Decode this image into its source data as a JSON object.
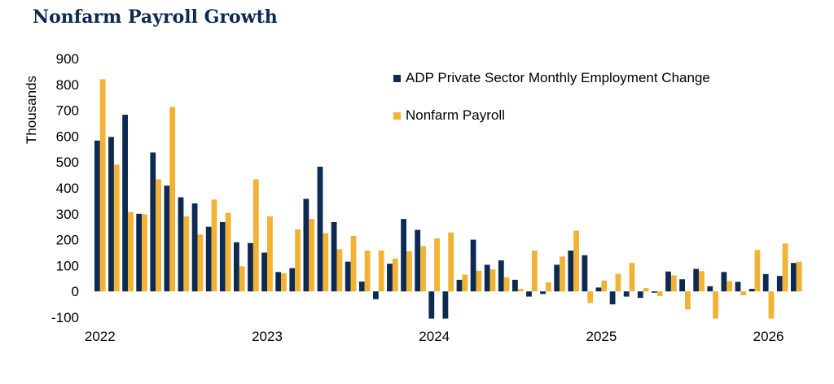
{
  "title": "Nonfarm Payroll Growth",
  "colors": {
    "adp": "#0d2a52",
    "nfp": "#f2b233",
    "title": "#0d2a52"
  },
  "chart_data": {
    "type": "bar",
    "title": "Nonfarm Payroll Growth",
    "ylabel": "Thousands",
    "xlabel": "",
    "ylim": [
      -100,
      900
    ],
    "yticks": [
      900,
      800,
      700,
      600,
      500,
      400,
      300,
      200,
      100,
      0,
      -100
    ],
    "xtick_labels": [
      "2022",
      "2023",
      "2024",
      "2025",
      "2026"
    ],
    "xtick_month_index": [
      0,
      12,
      24,
      36,
      48
    ],
    "legend_position": "top-right",
    "grid": false,
    "months": [
      "2022-01",
      "2022-02",
      "2022-03",
      "2022-04",
      "2022-05",
      "2022-06",
      "2022-07",
      "2022-08",
      "2022-09",
      "2022-10",
      "2022-11",
      "2022-12",
      "2023-01",
      "2023-02",
      "2023-03",
      "2023-04",
      "2023-05",
      "2023-06",
      "2023-07",
      "2023-08",
      "2023-09",
      "2023-10",
      "2023-11",
      "2023-12",
      "2024-01",
      "2024-02",
      "2024-03",
      "2024-04",
      "2024-05",
      "2024-06",
      "2024-07",
      "2024-08",
      "2024-09",
      "2024-10",
      "2024-11",
      "2024-12",
      "2025-01",
      "2025-02",
      "2025-03",
      "2025-04",
      "2025-05",
      "2025-06",
      "2025-07",
      "2025-08",
      "2025-09",
      "2025-10",
      "2025-11",
      "2025-12",
      "2026-01",
      "2026-02",
      "2026-03"
    ],
    "series": [
      {
        "name": "ADP Private Sector Monthly Employment Change",
        "values": [
          583,
          597,
          683,
          300,
          537,
          409,
          364,
          340,
          250,
          268,
          190,
          187,
          150,
          75,
          90,
          358,
          482,
          268,
          115,
          38,
          -30,
          107,
          280,
          238,
          -105,
          -105,
          45,
          200,
          103,
          120,
          45,
          -20,
          -10,
          103,
          158,
          140,
          15,
          -50,
          -20,
          -25,
          -5,
          77,
          47,
          87,
          20,
          75,
          37,
          10,
          67,
          60,
          110
        ]
      },
      {
        "name": "Nonfarm Payroll",
        "values": [
          820,
          490,
          307,
          298,
          433,
          713,
          290,
          220,
          355,
          303,
          97,
          433,
          290,
          70,
          240,
          280,
          225,
          163,
          215,
          158,
          158,
          127,
          155,
          175,
          205,
          228,
          65,
          80,
          85,
          55,
          10,
          158,
          35,
          135,
          235,
          -45,
          42,
          68,
          110,
          13,
          -18,
          62,
          -70,
          78,
          -105,
          40,
          -15,
          160,
          -105,
          185,
          115
        ]
      }
    ]
  }
}
